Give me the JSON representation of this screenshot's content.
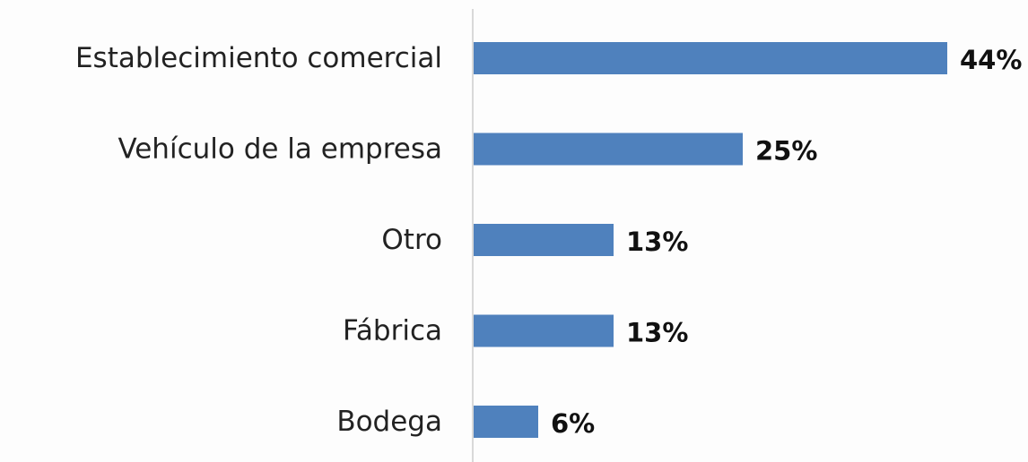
{
  "chart_data": {
    "type": "hbar",
    "categories": [
      "Establecimiento comercial",
      "Vehículo de la empresa",
      "Otro",
      "Fábrica",
      "Bodega"
    ],
    "values": [
      44,
      25,
      13,
      13,
      6
    ],
    "value_labels": [
      "44%",
      "25%",
      "13%",
      "13%",
      "6%"
    ],
    "color": "#4f81bd"
  }
}
